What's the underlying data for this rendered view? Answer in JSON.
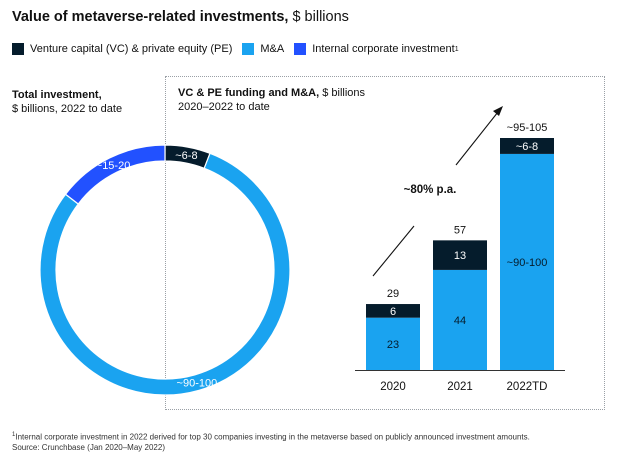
{
  "title_bold": "Value of metaverse-related investments,",
  "title_rest": " $ billions",
  "legend": [
    {
      "label": "Venture capital (VC) & private equity (PE)",
      "color": "#051c2c"
    },
    {
      "label": "M&A",
      "color": "#1aa3f0"
    },
    {
      "label": "Internal corporate investment",
      "sup": "1",
      "color": "#2251ff"
    }
  ],
  "left_panel": {
    "heading": "Total investment,",
    "sub": "$ billions, 2022 to date"
  },
  "right_panel": {
    "heading": "VC & PE funding and M&A,",
    "heading_rest": " $ billions",
    "sub": "2020–2022 to date"
  },
  "growth_label": "~80% p.a.",
  "footnote": {
    "sup": "1",
    "line1": "Internal corporate investment in 2022 derived for top 30 companies investing in the metaverse based on publicly announced investment amounts.",
    "line2": "Source: Crunchbase (Jan 2020–May 2022)"
  },
  "chart_data": [
    {
      "type": "pie",
      "subtype": "donut",
      "slices": [
        {
          "name": "VC & PE",
          "label": "~6-8",
          "value": 7,
          "color": "#051c2c"
        },
        {
          "name": "M&A",
          "label": "~90-100",
          "value": 95,
          "color": "#1aa3f0"
        },
        {
          "name": "Internal corporate investment",
          "label": "~15-20",
          "value": 17.5,
          "color": "#2251ff"
        }
      ]
    },
    {
      "type": "bar",
      "stacked": true,
      "categories": [
        "2020",
        "2021",
        "2022TD"
      ],
      "series": [
        {
          "name": "M&A",
          "values": [
            23,
            44,
            95
          ],
          "labels": [
            "23",
            "44",
            "~90-100"
          ],
          "color": "#1aa3f0"
        },
        {
          "name": "VC & PE",
          "values": [
            6,
            13,
            7
          ],
          "labels": [
            "6",
            "13",
            "~6-8"
          ],
          "color": "#051c2c"
        }
      ],
      "totals": [
        "29",
        "57",
        "~95-105"
      ],
      "ylim": [
        0,
        102
      ]
    }
  ]
}
